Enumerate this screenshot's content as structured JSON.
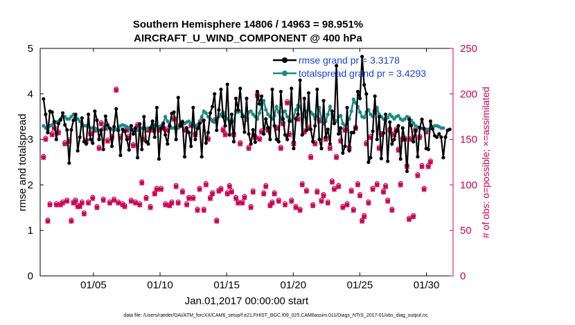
{
  "chart_data": {
    "type": "line",
    "title_line1": "Southern Hemisphere 14806 / 14963 = 98.951%",
    "title_line2": "AIRCRAFT_U_WIND_COMPONENT @ 400 hPa",
    "xlabel": "Jan.01,2017 00:00:00 start",
    "ylabel_left": "rmse and totalspread",
    "ylabel_right": "# of obs: o=possible; ×=assimilated",
    "xlim": [
      1,
      32
    ],
    "ylim_left": [
      0,
      5
    ],
    "ylim_right": [
      0,
      250
    ],
    "x_ticks": [
      {
        "value": 5,
        "label": "01/05"
      },
      {
        "value": 10,
        "label": "01/10"
      },
      {
        "value": 15,
        "label": "01/15"
      },
      {
        "value": 20,
        "label": "01/20"
      },
      {
        "value": 25,
        "label": "01/25"
      },
      {
        "value": 30,
        "label": "01/30"
      }
    ],
    "y_ticks_left": [
      "0",
      "1",
      "2",
      "3",
      "4",
      "5"
    ],
    "y_ticks_right": [
      "0",
      "50",
      "100",
      "150",
      "200",
      "250"
    ],
    "colors": {
      "rmse": "#000000",
      "spread": "#1a8a8a",
      "obs": "#cc0055",
      "legend_text": "#1a3fdc"
    },
    "series": [
      {
        "name": "rmse",
        "legend": "rmse grand pr = 3.3178",
        "values": [
          3.89,
          3.55,
          3.15,
          3.62,
          3.6,
          3.39,
          3.0,
          3.35,
          3.43,
          3.58,
          3.32,
          3.21,
          2.48,
          3.21,
          3.42,
          3.55,
          2.75,
          3.05,
          3.47,
          2.95,
          2.9,
          3.55,
          3.0,
          2.92,
          3.62,
          3.42,
          3.0,
          3.2,
          2.78,
          3.51,
          3.32,
          3.24,
          2.85,
          3.28,
          3.67,
          3.2,
          2.65,
          3.22,
          3.18,
          3.0,
          2.77,
          3.3,
          3.12,
          3.25,
          2.6,
          3.34,
          2.78,
          3.5,
          2.95,
          2.9,
          3.25,
          3.4,
          3.05,
          3.7,
          2.57,
          3.24,
          3.35,
          3.1,
          2.9,
          3.3,
          3.57,
          3.6,
          3.0,
          3.92,
          3.3,
          3.39,
          2.62,
          3.25,
          3.15,
          2.85,
          3.7,
          3.0,
          3.24,
          3.35,
          2.62,
          3.42,
          2.92,
          3.15,
          3.58,
          3.72,
          4.0,
          3.2,
          3.65,
          4.1,
          3.5,
          3.3,
          4.21,
          3.1,
          3.55,
          2.95,
          3.9,
          3.65,
          4.12,
          3.5,
          3.16,
          3.9,
          3.12,
          2.9,
          3.21,
          2.94,
          4.05,
          3.78,
          3.95,
          3.12,
          3.45,
          3.26,
          3.0,
          4.1,
          3.3,
          3.0,
          2.95,
          4.05,
          3.45,
          3.1,
          3.0,
          3.4,
          4.12,
          2.8,
          3.45,
          3.55,
          4.3,
          3.1,
          3.9,
          3.2,
          4.02,
          3.22,
          2.95,
          3.3,
          4.1,
          3.0,
          2.8,
          3.85,
          3.05,
          3.22,
          2.9,
          3.62,
          3.35,
          4.62,
          3.12,
          3.25,
          2.7,
          2.85,
          3.7,
          2.75,
          3.15,
          3.15,
          3.25,
          4.05,
          3.9,
          4.82,
          4.2,
          4.0,
          2.5,
          2.6,
          3.18,
          3.95,
          3.0,
          3.5,
          2.58,
          3.14,
          3.55,
          2.52,
          3.38,
          2.9,
          3.0,
          3.18,
          3.3,
          2.57,
          3.25,
          3.0,
          2.3,
          3.44,
          3.3,
          2.95,
          3.2,
          2.62,
          3.26,
          3.44,
          3.24,
          2.8,
          2.78,
          3.4,
          3.23,
          3.08,
          3.05,
          3.12,
          3.05,
          2.6,
          3.05,
          3.2,
          3.22
        ]
      },
      {
        "name": "totalspread",
        "legend": "totalspread grand pr = 3.4293",
        "values": [
          3.3,
          3.25,
          3.2,
          3.3,
          3.32,
          3.35,
          3.38,
          3.4,
          3.45,
          3.5,
          3.5,
          3.45,
          3.45,
          3.5,
          3.55,
          3.52,
          3.45,
          3.4,
          3.35,
          3.3,
          3.3,
          3.28,
          3.25,
          3.25,
          3.22,
          3.22,
          3.2,
          3.22,
          3.25,
          3.3,
          3.28,
          3.25,
          3.22,
          3.2,
          3.22,
          3.25,
          3.3,
          3.32,
          3.3,
          3.28,
          3.25,
          3.22,
          3.22,
          3.2,
          3.2,
          3.22,
          3.25,
          3.25,
          3.24,
          3.25,
          3.25,
          3.28,
          3.32,
          3.3,
          3.28,
          3.3,
          3.35,
          3.5,
          3.4,
          3.3,
          3.25,
          3.25,
          3.22,
          3.25,
          3.3,
          3.35,
          3.35,
          3.38,
          3.4,
          3.35,
          3.3,
          3.3,
          3.32,
          3.4,
          3.5,
          3.62,
          3.58,
          3.5,
          3.45,
          3.4,
          3.38,
          3.45,
          3.5,
          3.55,
          3.6,
          3.55,
          3.45,
          3.4,
          3.38,
          3.4,
          3.62,
          3.6,
          3.62,
          3.55,
          3.5,
          3.42,
          3.6,
          3.62,
          3.55,
          3.5,
          3.45,
          3.58,
          3.75,
          3.85,
          3.65,
          3.55,
          3.5,
          3.45,
          3.52,
          3.72,
          3.6,
          3.42,
          3.6,
          3.62,
          3.5,
          3.45,
          3.4,
          3.5,
          3.65,
          3.75,
          3.72,
          3.55,
          3.5,
          3.62,
          3.65,
          3.6,
          3.55,
          3.45,
          3.5,
          3.7,
          3.45,
          3.35,
          3.4,
          3.55,
          3.72,
          3.55,
          3.42,
          3.4,
          3.5,
          3.52,
          3.35,
          3.3,
          3.35,
          3.45,
          3.62,
          3.88,
          3.8,
          3.72,
          3.6,
          3.5,
          3.48,
          3.6,
          3.65,
          3.55,
          3.5,
          3.6,
          3.7,
          3.55,
          3.5,
          3.45,
          3.42,
          3.48,
          3.55,
          3.5,
          3.45,
          3.5,
          3.52,
          3.45,
          3.42,
          3.45,
          3.5,
          3.48,
          3.42,
          3.36,
          3.3,
          3.27,
          3.25,
          3.24,
          3.22,
          3.22,
          3.22,
          3.25,
          3.27,
          3.3,
          3.3,
          3.28,
          3.25,
          3.25
        ]
      },
      {
        "name": "obs_count",
        "marker": "× and o",
        "values": [
          130,
          150,
          60,
          78,
          155,
          162,
          78,
          157,
          78,
          80,
          145,
          82,
          148,
          60,
          80,
          82,
          76,
          76,
          80,
          68,
          148,
          80,
          156,
          85,
          160,
          75,
          140,
          167,
          83,
          162,
          148,
          80,
          152,
          83,
          204,
          80,
          152,
          78,
          76,
          160,
          152,
          82,
          143,
          80,
          165,
          78,
          102,
          150,
          85,
          160,
          75,
          160,
          90,
          95,
          160,
          95,
          162,
          78,
          160,
          77,
          80,
          172,
          98,
          80,
          165,
          92,
          160,
          78,
          85,
          165,
          85,
          155,
          72,
          95,
          170,
          72,
          100,
          150,
          85,
          90,
          170,
          60,
          93,
          95,
          160,
          155,
          90,
          98,
          92,
          155,
          85,
          80,
          145,
          80,
          86,
          172,
          140,
          75,
          92,
          152,
          198,
          150,
          158,
          90,
          98,
          160,
          77,
          80,
          90,
          162,
          82,
          140,
          167,
          78,
          190,
          155,
          82,
          145,
          75,
          172,
          72,
          100,
          158,
          93,
          162,
          130,
          77,
          145,
          92,
          170,
          82,
          88,
          150,
          80,
          140,
          103,
          95,
          130,
          98,
          148,
          75,
          160,
          78,
          140,
          93,
          72,
          162,
          100,
          88,
          60,
          65,
          145,
          80,
          152,
          95,
          180,
          100,
          140,
          155,
          92,
          98,
          82,
          160,
          72,
          155,
          160,
          138,
          100,
          150,
          150,
          120,
          62,
          150,
          65,
          160,
          110,
          152,
          120,
          95,
          158,
          120,
          125
        ]
      }
    ],
    "footer": "data file: /Users/raeder/DAI/ATM_forcXX/CAM6_setup/f.e21.FHIST_BGC.f09_025.CAM6assim.011/Diags_NTrS_2017-01/obs_diag_output.nc"
  }
}
